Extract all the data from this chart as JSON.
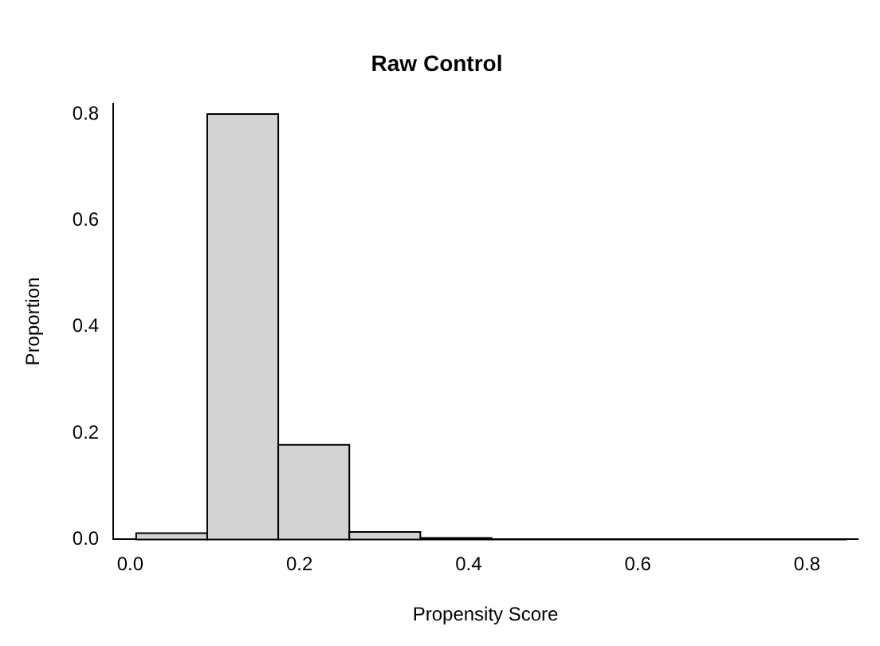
{
  "chart_data": {
    "type": "histogram",
    "title": "Raw Control",
    "xlabel": "Propensity Score",
    "ylabel": "Proportion",
    "bins": [
      0.007,
      0.091,
      0.175,
      0.259,
      0.343,
      0.427,
      0.511,
      0.595,
      0.679,
      0.763,
      0.847
    ],
    "values": [
      0.012,
      0.8,
      0.178,
      0.014,
      0.003,
      0,
      0,
      0,
      0,
      0
    ],
    "color": "#d3d3d3",
    "xlim": [
      -0.02,
      0.86
    ],
    "xticks": [
      {
        "value": 0,
        "label": "0.0"
      },
      0.2,
      0.4,
      0.6,
      0.8
    ],
    "ylim": [
      0,
      0.82
    ],
    "yticks": [
      {
        "value": 0,
        "label": "0.0"
      },
      0.2,
      0.4,
      0.6,
      0.8
    ],
    "grid": false,
    "legend": false
  }
}
